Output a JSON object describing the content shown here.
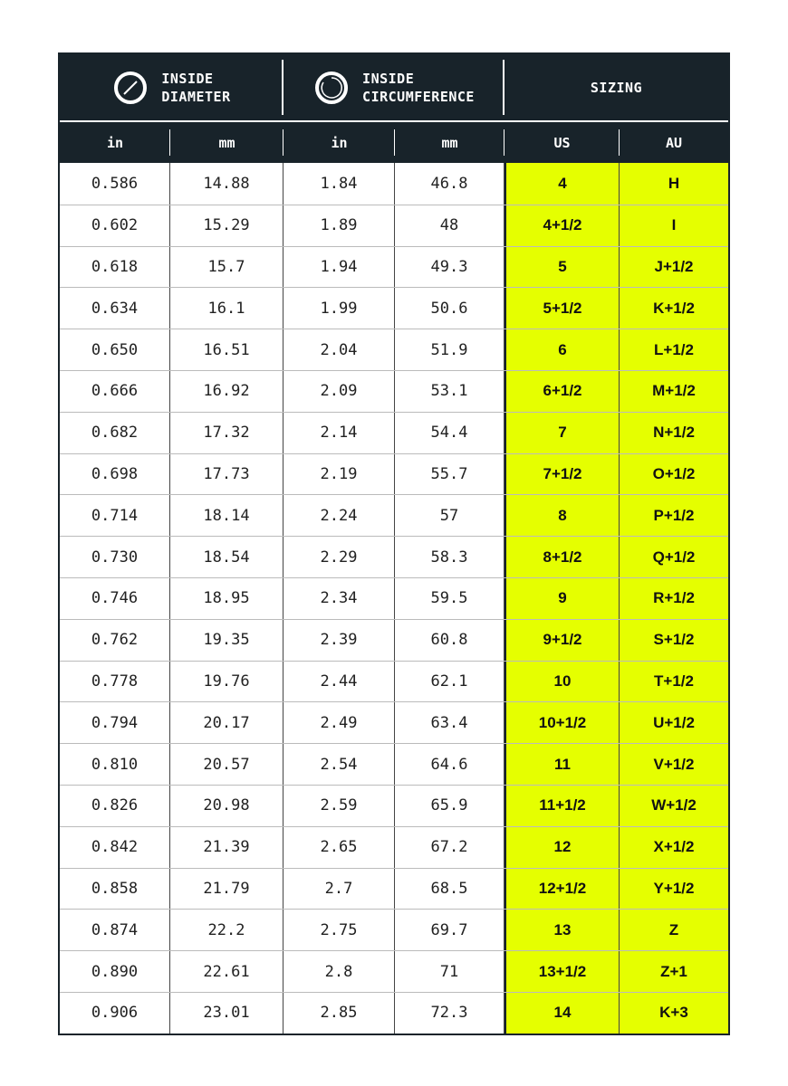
{
  "header": {
    "groups": [
      {
        "label_line1": "INSIDE",
        "label_line2": "DIAMETER",
        "icon": "diameter-icon"
      },
      {
        "label_line1": "INSIDE",
        "label_line2": "CIRCUMFERENCE",
        "icon": "circumference-icon"
      },
      {
        "label_line1": "SIZING"
      }
    ],
    "columns": [
      "in",
      "mm",
      "in",
      "mm",
      "US",
      "AU"
    ]
  },
  "colors": {
    "header_bg": "#18232a",
    "highlight": "#e5ff00"
  },
  "rows": [
    [
      "0.586",
      "14.88",
      "1.84",
      "46.8",
      "4",
      "H"
    ],
    [
      "0.602",
      "15.29",
      "1.89",
      "48",
      "4+1/2",
      "I"
    ],
    [
      "0.618",
      "15.7",
      "1.94",
      "49.3",
      "5",
      "J+1/2"
    ],
    [
      "0.634",
      "16.1",
      "1.99",
      "50.6",
      "5+1/2",
      "K+1/2"
    ],
    [
      "0.650",
      "16.51",
      "2.04",
      "51.9",
      "6",
      "L+1/2"
    ],
    [
      "0.666",
      "16.92",
      "2.09",
      "53.1",
      "6+1/2",
      "M+1/2"
    ],
    [
      "0.682",
      "17.32",
      "2.14",
      "54.4",
      "7",
      "N+1/2"
    ],
    [
      "0.698",
      "17.73",
      "2.19",
      "55.7",
      "7+1/2",
      "O+1/2"
    ],
    [
      "0.714",
      "18.14",
      "2.24",
      "57",
      "8",
      "P+1/2"
    ],
    [
      "0.730",
      "18.54",
      "2.29",
      "58.3",
      "8+1/2",
      "Q+1/2"
    ],
    [
      "0.746",
      "18.95",
      "2.34",
      "59.5",
      "9",
      "R+1/2"
    ],
    [
      "0.762",
      "19.35",
      "2.39",
      "60.8",
      "9+1/2",
      "S+1/2"
    ],
    [
      "0.778",
      "19.76",
      "2.44",
      "62.1",
      "10",
      "T+1/2"
    ],
    [
      "0.794",
      "20.17",
      "2.49",
      "63.4",
      "10+1/2",
      "U+1/2"
    ],
    [
      "0.810",
      "20.57",
      "2.54",
      "64.6",
      "11",
      "V+1/2"
    ],
    [
      "0.826",
      "20.98",
      "2.59",
      "65.9",
      "11+1/2",
      "W+1/2"
    ],
    [
      "0.842",
      "21.39",
      "2.65",
      "67.2",
      "12",
      "X+1/2"
    ],
    [
      "0.858",
      "21.79",
      "2.7",
      "68.5",
      "12+1/2",
      "Y+1/2"
    ],
    [
      "0.874",
      "22.2",
      "2.75",
      "69.7",
      "13",
      "Z"
    ],
    [
      "0.890",
      "22.61",
      "2.8",
      "71",
      "13+1/2",
      "Z+1"
    ],
    [
      "0.906",
      "23.01",
      "2.85",
      "72.3",
      "14",
      "K+3"
    ]
  ]
}
